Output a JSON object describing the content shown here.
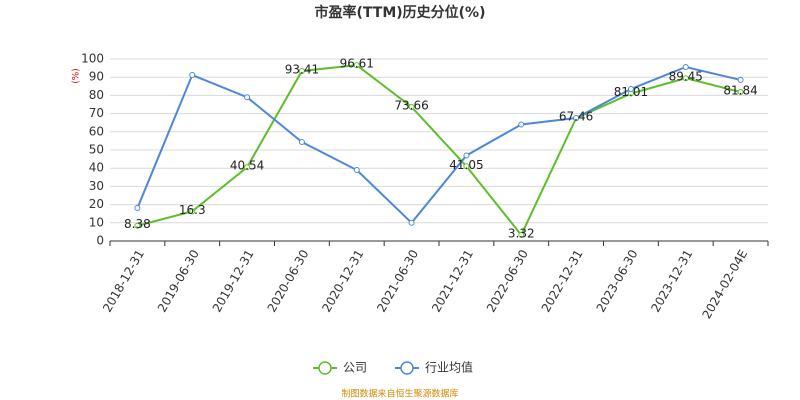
{
  "chart_data": {
    "type": "line",
    "title": "市盈率(TTM)历史分位(%)",
    "y_unit": "(%)",
    "categories": [
      "2018-12-31",
      "2019-06-30",
      "2019-12-31",
      "2020-06-30",
      "2020-12-31",
      "2021-06-30",
      "2021-12-31",
      "2022-06-30",
      "2022-12-31",
      "2023-06-30",
      "2023-12-31",
      "2024-02-04E"
    ],
    "series": [
      {
        "name": "公司",
        "color": "#5cbf2a",
        "data_labels": true,
        "values": [
          8.38,
          16.3,
          40.54,
          93.41,
          96.61,
          73.66,
          41.05,
          3.32,
          67.46,
          81.01,
          89.45,
          81.84
        ]
      },
      {
        "name": "行业均值",
        "color": "#4e87d9",
        "data_labels": false,
        "values": [
          18.1,
          91.2,
          79,
          54.4,
          39,
          10,
          47,
          64,
          67.6,
          83.5,
          95.6,
          88.5
        ]
      }
    ],
    "ylim": [
      0,
      100
    ],
    "yticks": [
      0,
      10,
      20,
      30,
      40,
      50,
      60,
      70,
      80,
      90,
      100
    ],
    "grid": true,
    "legend": "bottom",
    "source": "制图数据来自恒生聚源数据库"
  }
}
